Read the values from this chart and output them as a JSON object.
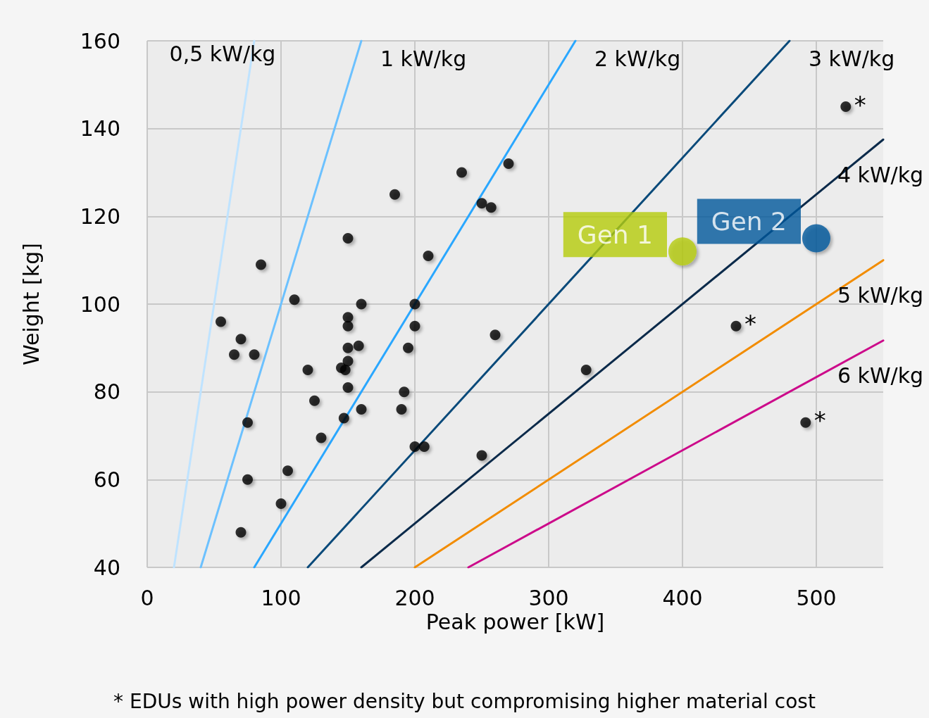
{
  "chart_data": {
    "type": "scatter",
    "xlabel": "Peak power [kW]",
    "ylabel": "Weight [kg]",
    "xlim": [
      0,
      550
    ],
    "xticks": [
      0,
      100,
      200,
      300,
      400,
      500
    ],
    "ylim": [
      40,
      160
    ],
    "yticks": [
      40,
      60,
      80,
      100,
      120,
      140,
      160
    ],
    "grid": true,
    "legend": false,
    "series": [
      {
        "name": "0,5 kW/kg",
        "type": "line",
        "color": "#bfe3ff",
        "marker": "none",
        "x": [
          20,
          80
        ],
        "values": [
          40,
          160
        ]
      },
      {
        "name": "1 kW/kg",
        "type": "line",
        "color": "#6cc1ff",
        "marker": "none",
        "x": [
          40,
          160
        ],
        "values": [
          40,
          160
        ]
      },
      {
        "name": "2 kW/kg",
        "type": "line",
        "color": "#2aa7ff",
        "marker": "none",
        "x": [
          80,
          320
        ],
        "values": [
          40,
          160
        ]
      },
      {
        "name": "3 kW/kg",
        "type": "line",
        "color": "#0a4a7a",
        "marker": "none",
        "x": [
          120,
          480
        ],
        "values": [
          40,
          160
        ]
      },
      {
        "name": "4 kW/kg",
        "type": "line",
        "color": "#0b2a4a",
        "marker": "none",
        "x": [
          160,
          550
        ],
        "values": [
          40,
          137.5
        ]
      },
      {
        "name": "5 kW/kg",
        "type": "line",
        "color": "#f28c00",
        "marker": "none",
        "x": [
          200,
          550
        ],
        "values": [
          40,
          110
        ]
      },
      {
        "name": "6 kW/kg",
        "type": "line",
        "color": "#cc0a8a",
        "marker": "none",
        "x": [
          240,
          550
        ],
        "values": [
          40,
          91.7
        ]
      },
      {
        "color": "#000000",
        "marker": "circle",
        "x": [
          55,
          70,
          65,
          80,
          85,
          75,
          75,
          70,
          110,
          105,
          100,
          120,
          125,
          130,
          150,
          150,
          150,
          150,
          158,
          160,
          150,
          145,
          148,
          150,
          147,
          160,
          185,
          190,
          192,
          195,
          200,
          200,
          200,
          207,
          210,
          235,
          250,
          257,
          270,
          250,
          260,
          328,
          522,
          440,
          492
        ],
        "values": [
          96,
          92,
          88.5,
          88.5,
          109,
          73,
          60,
          48,
          101,
          62,
          54.5,
          85,
          78,
          69.5,
          115,
          97,
          95,
          90,
          90.5,
          100,
          87,
          85.5,
          85,
          81,
          74,
          76,
          125,
          76,
          80,
          90,
          100,
          95,
          67.5,
          67.5,
          111,
          130,
          123,
          122,
          132,
          65.5,
          93,
          85,
          145,
          95,
          73
        ]
      },
      {
        "name": "Gen 1",
        "type": "scatter",
        "color": "#b5cc0a",
        "marker": "circle",
        "x": [
          400
        ],
        "values": [
          112
        ]
      },
      {
        "name": "Gen 2",
        "type": "scatter",
        "color": "#00579b",
        "marker": "circle",
        "x": [
          500
        ],
        "values": [
          115
        ]
      }
    ],
    "annotations": [
      {
        "text": "*",
        "x": 522,
        "y": 145
      },
      {
        "text": "*",
        "x": 440,
        "y": 95
      },
      {
        "text": "*",
        "x": 492,
        "y": 73
      },
      "* EDUs with high power density but compromising higher material cost"
    ]
  }
}
